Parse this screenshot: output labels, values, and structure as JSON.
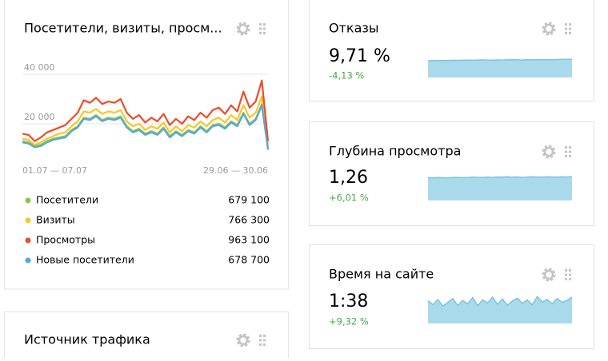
{
  "chart_data": [
    {
      "type": "line",
      "title": "Посетители, визиты, просм...",
      "ylim": [
        0,
        45000
      ],
      "yticks": [
        {
          "value": 20000,
          "label": "20 000"
        },
        {
          "value": 40000,
          "label": "40 000"
        }
      ],
      "grid": true,
      "categories": [
        "01.07 — 07.07",
        null,
        null,
        null,
        null,
        null,
        null,
        null,
        null,
        null,
        null,
        null,
        null,
        null,
        null,
        null,
        null,
        null,
        null,
        null,
        null,
        null,
        null,
        null,
        null,
        null,
        null,
        null,
        null,
        null,
        null,
        null,
        null,
        null,
        null,
        null,
        null,
        null,
        null,
        null,
        "29.06 — 30.06"
      ],
      "series": [
        {
          "name": "Посетители",
          "color": "#8cc63f",
          "total": "679 100",
          "values": [
            13000,
            12500,
            11000,
            11500,
            13000,
            14000,
            14500,
            15000,
            17500,
            19000,
            22500,
            22000,
            23500,
            21500,
            22500,
            22000,
            23000,
            19000,
            17000,
            18000,
            16000,
            17000,
            16000,
            18500,
            15000,
            17000,
            15500,
            17500,
            16500,
            19000,
            17000,
            19500,
            20000,
            18500,
            21000,
            19500,
            24500,
            20000,
            22000,
            28000,
            10000
          ]
        },
        {
          "name": "Визиты",
          "color": "#f5c825",
          "total": "766 300",
          "values": [
            14000,
            13500,
            11500,
            12500,
            14000,
            15000,
            16000,
            16500,
            19000,
            21000,
            25000,
            24500,
            26000,
            24000,
            25000,
            24500,
            25500,
            21000,
            19000,
            20000,
            17500,
            19000,
            18000,
            20500,
            16500,
            19000,
            17000,
            19500,
            18500,
            21000,
            19000,
            21500,
            22500,
            20500,
            23500,
            21500,
            27500,
            22500,
            24500,
            31000,
            11500
          ]
        },
        {
          "name": "Просмотры",
          "color": "#ee4b2b",
          "total": "963 100",
          "values": [
            16000,
            15500,
            13000,
            14500,
            16500,
            17500,
            18500,
            19500,
            22000,
            24500,
            29500,
            28500,
            30500,
            28000,
            29000,
            28500,
            30000,
            24500,
            22000,
            23500,
            20500,
            22500,
            21000,
            24000,
            19500,
            22000,
            20000,
            23000,
            21500,
            24500,
            22500,
            25500,
            26500,
            24000,
            27500,
            25000,
            33000,
            26500,
            29000,
            37500,
            13000
          ]
        },
        {
          "name": "Новые посетители",
          "color": "#5aa6de",
          "total": "678 700",
          "values": [
            12500,
            12000,
            10500,
            11000,
            12500,
            13500,
            14000,
            14500,
            17000,
            18500,
            22000,
            21500,
            23000,
            21000,
            22000,
            21500,
            22500,
            18500,
            16500,
            17500,
            15500,
            16500,
            15500,
            18000,
            14500,
            16500,
            15000,
            17000,
            16000,
            18500,
            16500,
            19000,
            19500,
            18000,
            20500,
            19000,
            24000,
            19500,
            21500,
            27500,
            9500
          ]
        }
      ]
    },
    {
      "type": "area",
      "title": "Отказы",
      "value_text": "9,71 %",
      "change": "-4,13 %",
      "color": "#a9daec",
      "line_color": "#7cc4df",
      "ylim": [
        0,
        12
      ],
      "values": [
        9.3,
        9.4,
        9.4,
        9.5,
        9.4,
        9.6,
        9.5,
        9.6,
        9.7,
        9.6,
        9.7,
        9.8,
        9.7,
        9.6,
        9.8,
        9.7,
        9.8,
        9.9,
        9.8,
        9.7,
        9.9,
        9.8,
        9.9,
        10.0,
        9.9,
        9.8,
        10.0,
        10.1,
        10.1,
        10.1
      ]
    },
    {
      "type": "area",
      "title": "Глубина просмотра",
      "value_text": "1,26",
      "change": "+6,01 %",
      "color": "#a9daec",
      "line_color": "#7cc4df",
      "ylim": [
        0,
        1.5
      ],
      "values": [
        1.22,
        1.21,
        1.23,
        1.22,
        1.21,
        1.23,
        1.24,
        1.22,
        1.23,
        1.25,
        1.24,
        1.23,
        1.25,
        1.24,
        1.26,
        1.25,
        1.27,
        1.25,
        1.26,
        1.24,
        1.25,
        1.27,
        1.26,
        1.25,
        1.27,
        1.26,
        1.25,
        1.27,
        1.26,
        1.28
      ]
    },
    {
      "type": "area",
      "title": "Время на сайте",
      "value_text": "1:38",
      "change": "+9,32 %",
      "color": "#a9daec",
      "line_color": "#7cc4df",
      "ylim": [
        0,
        130
      ],
      "values": [
        95,
        78,
        100,
        72,
        88,
        104,
        75,
        96,
        82,
        108,
        74,
        98,
        86,
        110,
        80,
        102,
        76,
        94,
        106,
        84,
        98,
        78,
        112,
        90,
        100,
        82,
        104,
        88,
        96,
        110
      ]
    }
  ],
  "traffic_source": {
    "title": "Источник трафика"
  }
}
